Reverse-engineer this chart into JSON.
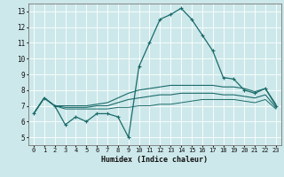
{
  "title": "",
  "xlabel": "Humidex (Indice chaleur)",
  "ylabel": "",
  "xlim": [
    -0.5,
    23.5
  ],
  "ylim": [
    4.5,
    13.5
  ],
  "yticks": [
    5,
    6,
    7,
    8,
    9,
    10,
    11,
    12,
    13
  ],
  "xticks": [
    0,
    1,
    2,
    3,
    4,
    5,
    6,
    7,
    8,
    9,
    10,
    11,
    12,
    13,
    14,
    15,
    16,
    17,
    18,
    19,
    20,
    21,
    22,
    23
  ],
  "bg_color": "#cde8ea",
  "grid_color": "#ffffff",
  "line_color": "#1a6b6b",
  "line1": {
    "x": [
      0,
      1,
      2,
      3,
      4,
      5,
      6,
      7,
      8,
      9,
      10,
      11,
      12,
      13,
      14,
      15,
      16,
      17,
      18,
      19,
      20,
      21,
      22,
      23
    ],
    "y": [
      6.5,
      7.5,
      7.0,
      5.8,
      6.3,
      6.0,
      6.5,
      6.5,
      6.3,
      5.0,
      9.5,
      11.0,
      12.5,
      12.8,
      13.2,
      12.5,
      11.5,
      10.5,
      8.8,
      8.7,
      8.0,
      7.8,
      8.1,
      7.0
    ]
  },
  "line2": {
    "x": [
      0,
      1,
      2,
      3,
      4,
      5,
      6,
      7,
      8,
      9,
      10,
      11,
      12,
      13,
      14,
      15,
      16,
      17,
      18,
      19,
      20,
      21,
      22,
      23
    ],
    "y": [
      6.5,
      7.5,
      7.0,
      7.0,
      7.0,
      7.0,
      7.1,
      7.2,
      7.5,
      7.8,
      8.0,
      8.1,
      8.2,
      8.3,
      8.3,
      8.3,
      8.3,
      8.3,
      8.2,
      8.2,
      8.1,
      7.9,
      8.1,
      7.1
    ]
  },
  "line3": {
    "x": [
      0,
      1,
      2,
      3,
      4,
      5,
      6,
      7,
      8,
      9,
      10,
      11,
      12,
      13,
      14,
      15,
      16,
      17,
      18,
      19,
      20,
      21,
      22,
      23
    ],
    "y": [
      6.5,
      7.5,
      7.0,
      6.9,
      6.9,
      6.9,
      7.0,
      7.0,
      7.2,
      7.4,
      7.5,
      7.6,
      7.7,
      7.7,
      7.8,
      7.8,
      7.8,
      7.8,
      7.7,
      7.7,
      7.6,
      7.5,
      7.7,
      6.9
    ]
  },
  "line4": {
    "x": [
      0,
      1,
      2,
      3,
      4,
      5,
      6,
      7,
      8,
      9,
      10,
      11,
      12,
      13,
      14,
      15,
      16,
      17,
      18,
      19,
      20,
      21,
      22,
      23
    ],
    "y": [
      6.5,
      7.5,
      7.0,
      6.8,
      6.8,
      6.8,
      6.8,
      6.8,
      6.9,
      6.9,
      7.0,
      7.0,
      7.1,
      7.1,
      7.2,
      7.3,
      7.4,
      7.4,
      7.4,
      7.4,
      7.3,
      7.2,
      7.4,
      6.8
    ]
  }
}
